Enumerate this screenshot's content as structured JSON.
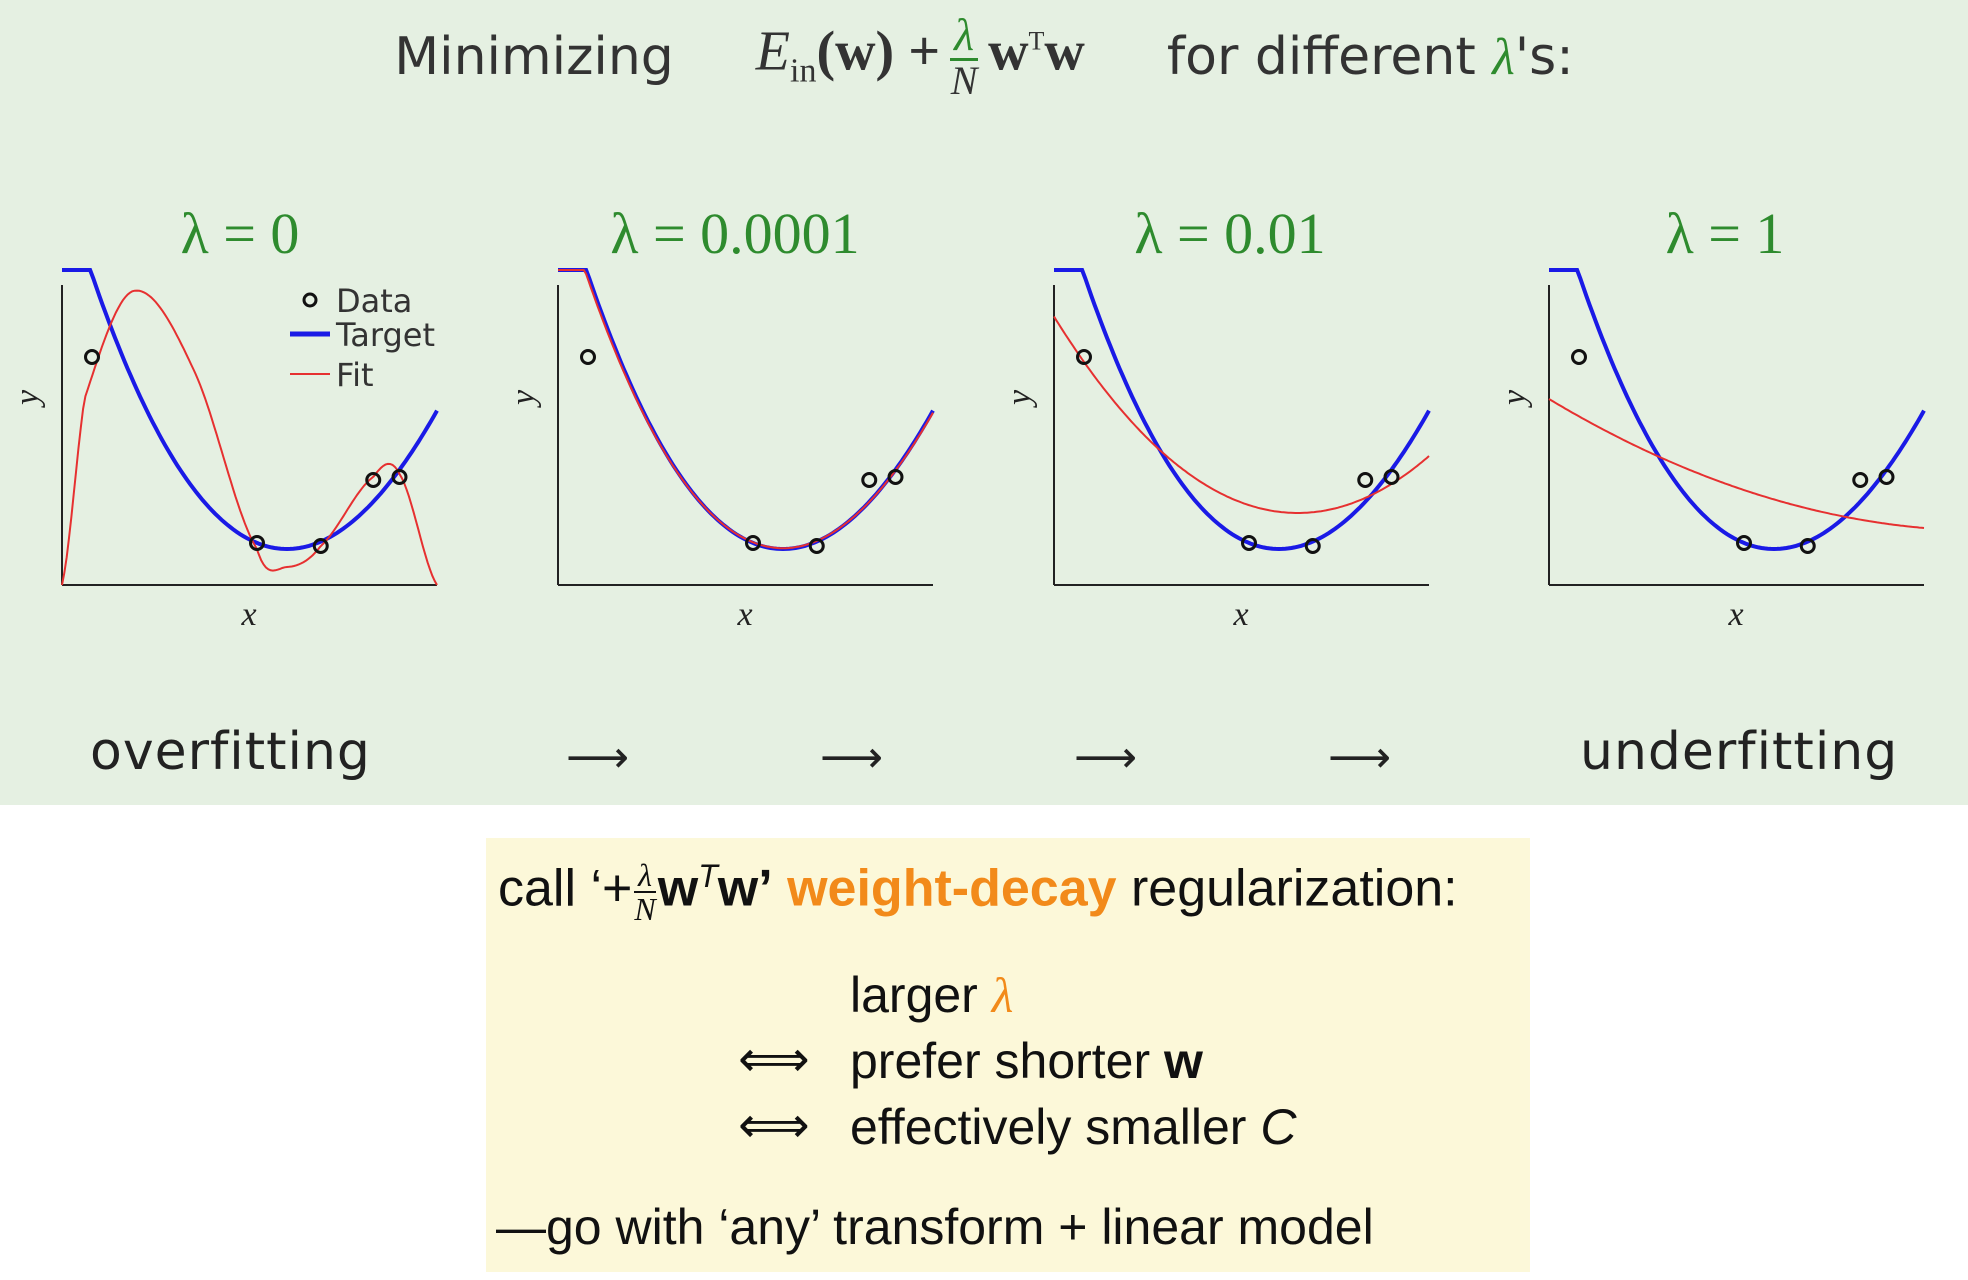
{
  "title": {
    "prefix": "Minimizing",
    "math_E": "E",
    "math_in": "in",
    "math_w": "(w) +",
    "lambda": "λ",
    "N": "N",
    "wtw_a": "w",
    "wtw_T": "T",
    "wtw_b": "w",
    "suffix_a": "for different",
    "suffix_lambda": "λ",
    "suffix_b": "'s:"
  },
  "panels": [
    {
      "label": "λ = 0"
    },
    {
      "label": "λ = 0.0001"
    },
    {
      "label": "λ = 0.01"
    },
    {
      "label": "λ = 1"
    }
  ],
  "axes": {
    "xlabel": "x",
    "ylabel": "y"
  },
  "legend": {
    "data": "Data",
    "target": "Target",
    "fit": "Fit"
  },
  "colors": {
    "target": "#1a1ae6",
    "fit": "#e63030",
    "accent": "#f28a1a",
    "green": "#2e8b2e"
  },
  "bottom": {
    "left": "overfitting",
    "right": "underfitting",
    "arrow": "⟶"
  },
  "note": {
    "call": "call ‘+",
    "frac_num": "λ",
    "frac_den": "N",
    "wtw_a": "w",
    "wtw_T": "T",
    "wtw_b": "w’",
    "weight_decay": "weight-decay",
    "regularization": "regularization:",
    "larger": "larger",
    "lambda": "λ",
    "iff": "⟺",
    "prefer": "prefer shorter",
    "w": "w",
    "effectively": "effectively smaller",
    "C": "C",
    "go_with": "—go with ‘any’ transform + linear model"
  },
  "chart_data": [
    {
      "type": "line",
      "title": "λ = 0",
      "lambda": 0,
      "xlabel": "x",
      "ylabel": "y",
      "data_points": [
        [
          0.08,
          0.76
        ],
        [
          0.52,
          0.14
        ],
        [
          0.69,
          0.13
        ],
        [
          0.83,
          0.35
        ],
        [
          0.9,
          0.36
        ]
      ],
      "series": [
        {
          "name": "Target"
        },
        {
          "name": "Fit"
        }
      ],
      "legend": "top-right"
    },
    {
      "type": "line",
      "title": "λ = 0.0001",
      "lambda": 0.0001,
      "xlabel": "x",
      "ylabel": "y",
      "data_points": [
        [
          0.08,
          0.76
        ],
        [
          0.52,
          0.14
        ],
        [
          0.69,
          0.13
        ],
        [
          0.83,
          0.35
        ],
        [
          0.9,
          0.36
        ]
      ],
      "series": [
        {
          "name": "Target"
        },
        {
          "name": "Fit"
        }
      ]
    },
    {
      "type": "line",
      "title": "λ = 0.01",
      "lambda": 0.01,
      "xlabel": "x",
      "ylabel": "y",
      "data_points": [
        [
          0.08,
          0.76
        ],
        [
          0.52,
          0.14
        ],
        [
          0.69,
          0.13
        ],
        [
          0.83,
          0.35
        ],
        [
          0.9,
          0.36
        ]
      ],
      "series": [
        {
          "name": "Target"
        },
        {
          "name": "Fit"
        }
      ]
    },
    {
      "type": "line",
      "title": "λ = 1",
      "lambda": 1,
      "xlabel": "x",
      "ylabel": "y",
      "data_points": [
        [
          0.08,
          0.76
        ],
        [
          0.52,
          0.14
        ],
        [
          0.69,
          0.13
        ],
        [
          0.83,
          0.35
        ],
        [
          0.9,
          0.36
        ]
      ],
      "series": [
        {
          "name": "Target"
        },
        {
          "name": "Fit"
        }
      ]
    }
  ]
}
